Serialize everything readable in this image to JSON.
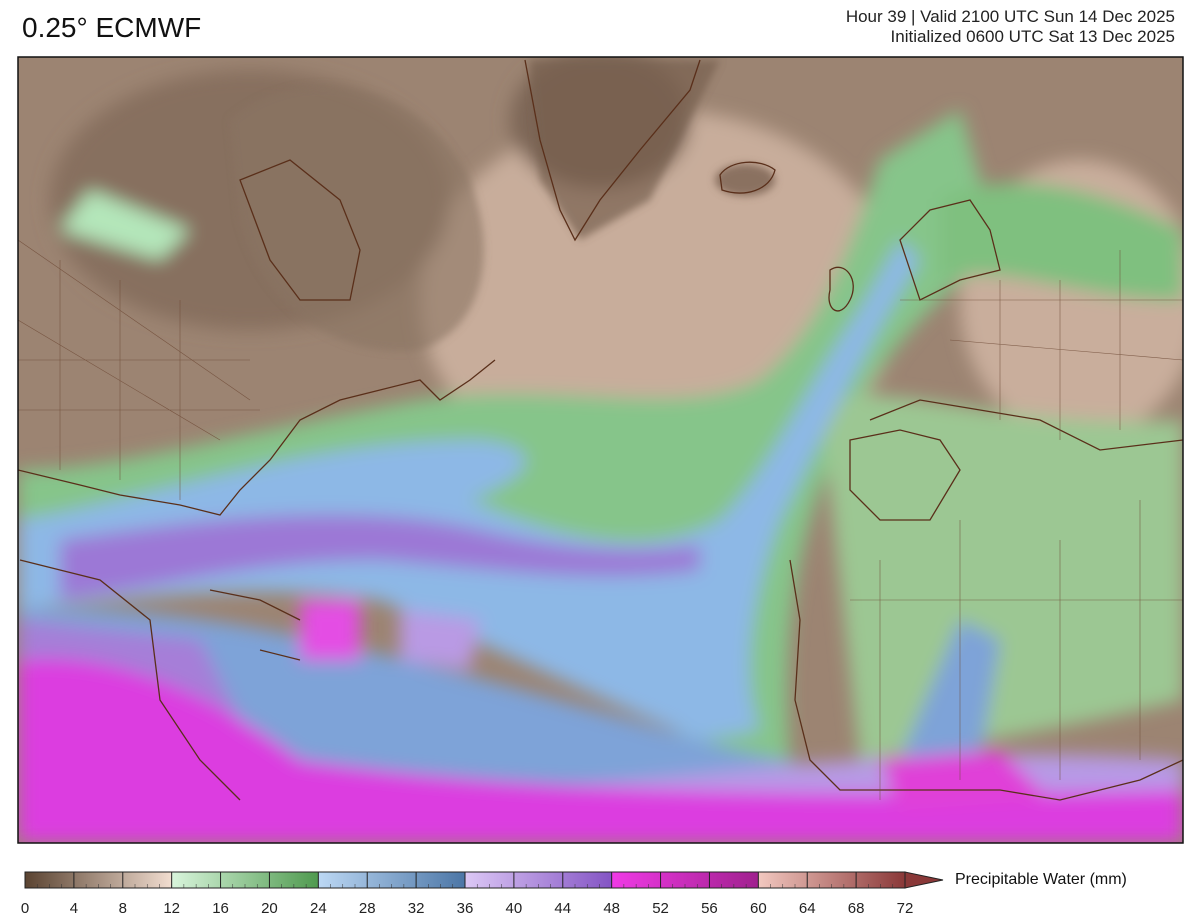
{
  "header": {
    "title": "0.25° ECMWF",
    "valid": "Hour 39 | Valid 2100 UTC Sun 14 Dec 2025",
    "initialized": "Initialized 0600 UTC Sat 13 Dec 2025"
  },
  "colorbar": {
    "label": "Precipitable Water (mm)",
    "range": [
      0,
      72
    ],
    "ticks": [
      0,
      4,
      8,
      12,
      16,
      20,
      24,
      28,
      32,
      36,
      40,
      44,
      48,
      52,
      56,
      60,
      64,
      68,
      72
    ],
    "groups": [
      {
        "from": 0,
        "to": 12,
        "colors": [
          "#5a4331",
          "#f1ddd0"
        ]
      },
      {
        "from": 12,
        "to": 24,
        "colors": [
          "#d9f5dc",
          "#4f9a4f"
        ]
      },
      {
        "from": 24,
        "to": 36,
        "colors": [
          "#bcd8f4",
          "#4c76a6"
        ]
      },
      {
        "from": 36,
        "to": 48,
        "colors": [
          "#dcc8f5",
          "#8454c4"
        ]
      },
      {
        "from": 48,
        "to": 60,
        "colors": [
          "#f03ae6",
          "#a0208e"
        ]
      },
      {
        "from": 60,
        "to": 72,
        "colors": [
          "#f2c8c0",
          "#8a3838"
        ]
      }
    ]
  }
}
